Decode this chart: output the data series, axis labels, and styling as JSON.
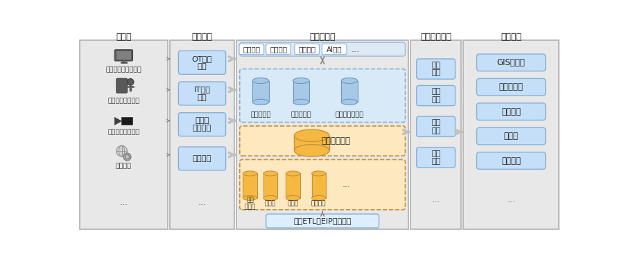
{
  "section_titles": [
    "数据源",
    "数据采集",
    "大数据平台",
    "数据交换共享",
    "结果展示"
  ],
  "col1_items": [
    "煤矿生产、安全系统",
    "煤矿经营管理系统",
    "煤炭工业视频监控",
    "地质地测",
    "..."
  ],
  "col2_items": [
    "OT数据\n采集",
    "IT数据\n采集",
    "音视频\n数据采集",
    "手工填报",
    "..."
  ],
  "col3_top_items": [
    "生产分析",
    "安全分析",
    "时空分析",
    "AI建模",
    "..."
  ],
  "col3_db_items": [
    "煤矿主题库",
    "煤矿专题库",
    "其他业务分析库"
  ],
  "col3_warehouse": "煤矿数据仓库",
  "col3_bottom_items": [
    "测点\n实时库",
    "时序库",
    "时空库",
    "音视频库",
    "..."
  ],
  "col3_etl": "数据ETL、EIP对象建模",
  "col4_items": [
    "实时\n数据",
    "历史\n数据",
    "时空\n数据",
    "指标\n数据",
    "..."
  ],
  "col5_items": [
    "GIS一张图",
    "管理驾驶舱",
    "业务报表",
    "移动端",
    "综合管控",
    "..."
  ],
  "panel_bg": "#e8e8e8",
  "panel_stroke": "#b0b0b0",
  "box_blue": "#c5dff8",
  "box_blue_stroke": "#85b0d8",
  "box_white": "#ffffff",
  "dashed_blue_bg": "#d8eaf8",
  "orange_fill": "#f5b942",
  "orange_light": "#fad498",
  "orange_stroke": "#c8903a",
  "etl_blue": "#ddeeff",
  "etl_stroke": "#85b0d8"
}
